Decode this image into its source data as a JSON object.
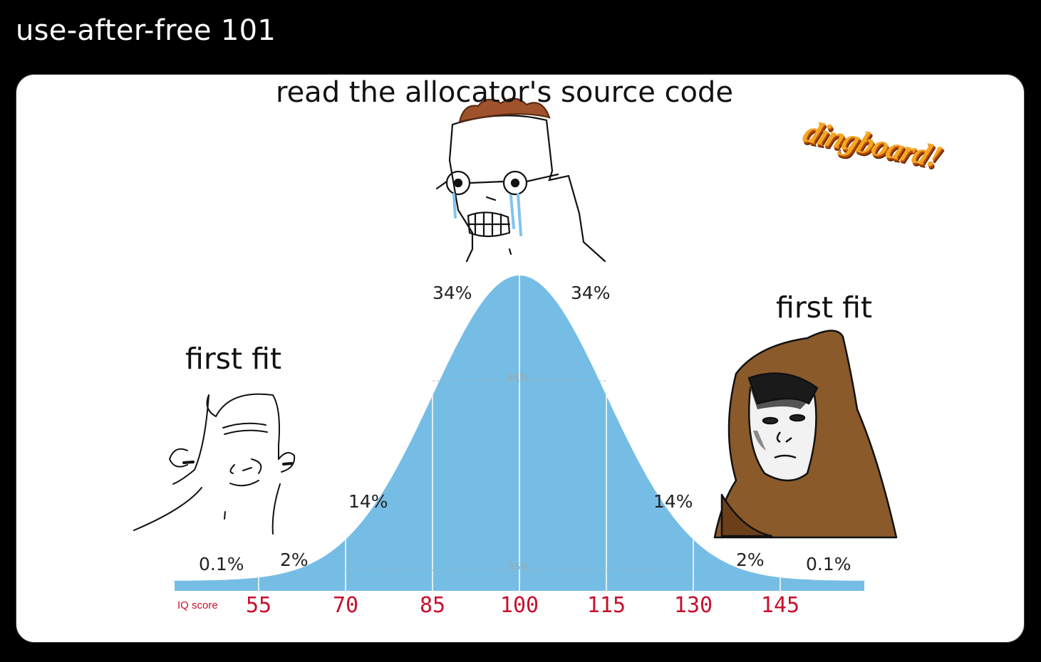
{
  "post": {
    "caption": "use-after-free 101"
  },
  "meme": {
    "top_caption": "read the allocator's source code",
    "left_caption": "first fit",
    "right_caption": "first fit",
    "watermark": "dingboard!",
    "characters": [
      "crying-wojak-icon",
      "smiling-wojak-icon",
      "hooded-monk-icon"
    ]
  },
  "chart_data": {
    "type": "area",
    "x_axis_label": "IQ score",
    "x_ticks": [
      "55",
      "70",
      "85",
      "100",
      "115",
      "130",
      "145"
    ],
    "band_labels": {
      "left_far": "0.1%",
      "left_outer": "2%",
      "left_mid": "14%",
      "left_inner": "34%",
      "right_inner": "34%",
      "right_mid": "14%",
      "right_outer": "2%",
      "right_far": "0.1%"
    },
    "inner_range_labels": {
      "one_sd": "68%",
      "two_sd": "95%"
    },
    "distribution": {
      "mean": 100,
      "sd": 15
    },
    "fill_color": "#76bde6",
    "tick_color": "#c8102e"
  }
}
